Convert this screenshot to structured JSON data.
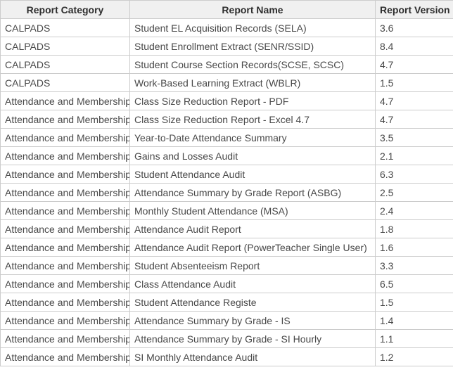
{
  "colors": {
    "header_bg": "#f0f0f0",
    "border": "#cccccc",
    "header_text": "#2e2e2e",
    "body_text": "#484848"
  },
  "table": {
    "columns": [
      {
        "label": "Report Category"
      },
      {
        "label": "Report Name"
      },
      {
        "label": "Report Version"
      }
    ],
    "rows": [
      {
        "category": "CALPADS",
        "name": "Student EL Acquisition Records (SELA)",
        "version": "3.6"
      },
      {
        "category": "CALPADS",
        "name": "Student Enrollment Extract (SENR/SSID)",
        "version": "8.4"
      },
      {
        "category": "CALPADS",
        "name": "Student Course Section Records(SCSE, SCSC)",
        "version": "4.7"
      },
      {
        "category": "CALPADS",
        "name": "Work-Based Learning Extract (WBLR)",
        "version": "1.5"
      },
      {
        "category": "Attendance and Membership",
        "name": "Class Size Reduction Report - PDF",
        "version": "4.7"
      },
      {
        "category": "Attendance and Membership",
        "name": "Class Size Reduction Report - Excel 4.7",
        "version": "4.7"
      },
      {
        "category": "Attendance and Membership",
        "name": "Year-to-Date Attendance Summary",
        "version": "3.5"
      },
      {
        "category": "Attendance and Membership",
        "name": "Gains and Losses Audit",
        "version": "2.1"
      },
      {
        "category": "Attendance and Membership",
        "name": "Student Attendance Audit",
        "version": "6.3"
      },
      {
        "category": "Attendance and Membership",
        "name": "Attendance Summary by Grade Report (ASBG)",
        "version": "2.5"
      },
      {
        "category": "Attendance and Membership",
        "name": "Monthly Student Attendance (MSA)",
        "version": "2.4"
      },
      {
        "category": "Attendance and Membership",
        "name": "Attendance Audit Report",
        "version": "1.8"
      },
      {
        "category": "Attendance and Membership",
        "name": "Attendance Audit Report (PowerTeacher Single User)",
        "version": "1.6"
      },
      {
        "category": "Attendance and Membership",
        "name": "Student Absenteeism Report",
        "version": "3.3"
      },
      {
        "category": "Attendance and Membership",
        "name": "Class Attendance Audit",
        "version": "6.5"
      },
      {
        "category": "Attendance and Membership",
        "name": "Student Attendance Registe",
        "version": "1.5"
      },
      {
        "category": "Attendance and Membership",
        "name": "Attendance Summary by Grade - IS",
        "version": "1.4"
      },
      {
        "category": "Attendance and Membership",
        "name": "Attendance Summary by Grade - SI Hourly",
        "version": "1.1"
      },
      {
        "category": "Attendance and Membership",
        "name": "SI Monthly Attendance Audit",
        "version": "1.2"
      }
    ]
  }
}
